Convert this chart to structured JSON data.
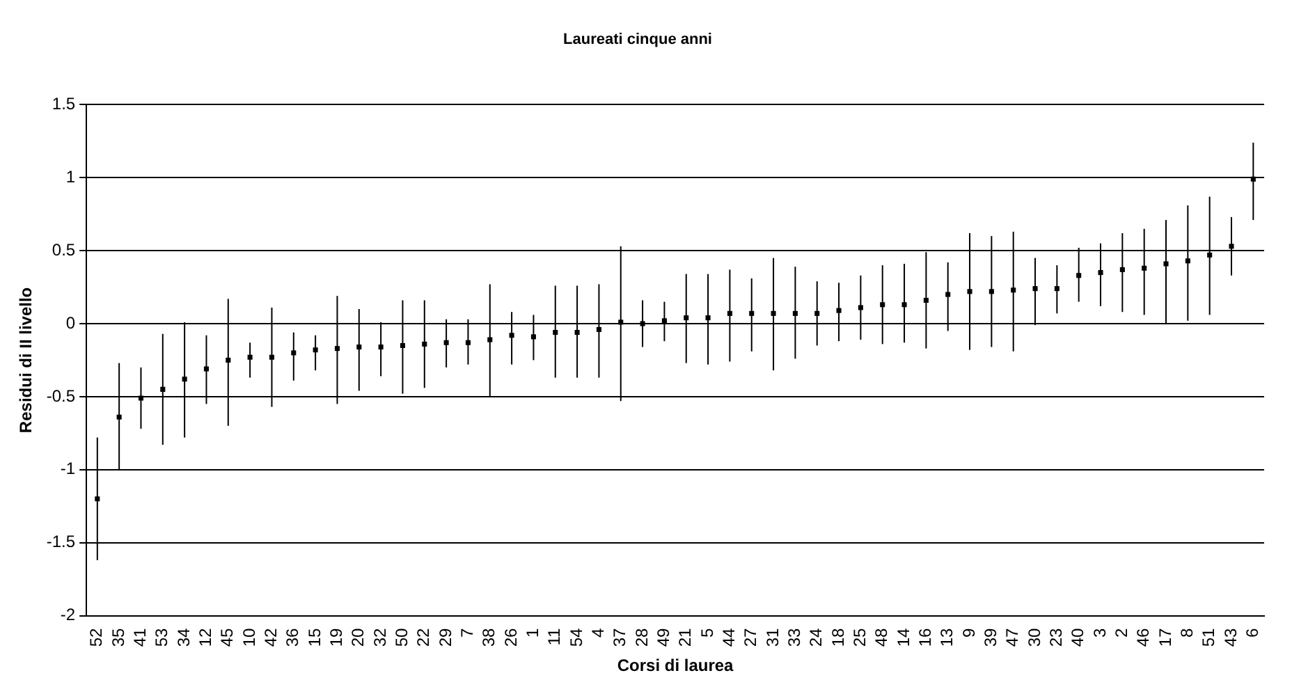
{
  "chart_data": {
    "type": "scatter",
    "title": "Laureati cinque anni",
    "xlabel": "Corsi di laurea",
    "ylabel": "Residui di II livello",
    "categories": [
      "52",
      "35",
      "41",
      "53",
      "34",
      "12",
      "45",
      "10",
      "42",
      "36",
      "15",
      "19",
      "20",
      "32",
      "50",
      "22",
      "29",
      "7",
      "38",
      "26",
      "1",
      "11",
      "54",
      "4",
      "37",
      "28",
      "49",
      "21",
      "5",
      "44",
      "27",
      "31",
      "33",
      "24",
      "18",
      "25",
      "48",
      "14",
      "16",
      "13",
      "9",
      "39",
      "47",
      "30",
      "23",
      "40",
      "3",
      "2",
      "46",
      "17",
      "8",
      "51",
      "43",
      "6"
    ],
    "values": [
      -1.2,
      -0.64,
      -0.51,
      -0.45,
      -0.38,
      -0.31,
      -0.25,
      -0.23,
      -0.23,
      -0.2,
      -0.18,
      -0.17,
      -0.16,
      -0.16,
      -0.15,
      -0.14,
      -0.13,
      -0.13,
      -0.11,
      -0.08,
      -0.09,
      -0.06,
      -0.06,
      -0.04,
      0.01,
      0.0,
      0.02,
      0.04,
      0.04,
      0.07,
      0.07,
      0.07,
      0.07,
      0.07,
      0.09,
      0.11,
      0.13,
      0.13,
      0.16,
      0.2,
      0.22,
      0.22,
      0.23,
      0.24,
      0.24,
      0.33,
      0.35,
      0.37,
      0.38,
      0.41,
      0.43,
      0.47,
      0.53,
      0.99
    ],
    "errors": [
      [
        -1.62,
        -0.78
      ],
      [
        -1.0,
        -0.27
      ],
      [
        -0.72,
        -0.3
      ],
      [
        -0.83,
        -0.07
      ],
      [
        -0.78,
        0.01
      ],
      [
        -0.55,
        -0.08
      ],
      [
        -0.7,
        0.17
      ],
      [
        -0.37,
        -0.13
      ],
      [
        -0.57,
        0.11
      ],
      [
        -0.39,
        -0.06
      ],
      [
        -0.32,
        -0.08
      ],
      [
        -0.55,
        0.19
      ],
      [
        -0.46,
        0.1
      ],
      [
        -0.36,
        0.01
      ],
      [
        -0.48,
        0.16
      ],
      [
        -0.44,
        0.16
      ],
      [
        -0.3,
        0.03
      ],
      [
        -0.28,
        0.03
      ],
      [
        -0.5,
        0.27
      ],
      [
        -0.28,
        0.08
      ],
      [
        -0.25,
        0.06
      ],
      [
        -0.37,
        0.26
      ],
      [
        -0.37,
        0.26
      ],
      [
        -0.37,
        0.27
      ],
      [
        -0.53,
        0.53
      ],
      [
        -0.16,
        0.16
      ],
      [
        -0.12,
        0.15
      ],
      [
        -0.27,
        0.34
      ],
      [
        -0.28,
        0.34
      ],
      [
        -0.26,
        0.37
      ],
      [
        -0.19,
        0.31
      ],
      [
        -0.32,
        0.45
      ],
      [
        -0.24,
        0.39
      ],
      [
        -0.15,
        0.29
      ],
      [
        -0.12,
        0.28
      ],
      [
        -0.11,
        0.33
      ],
      [
        -0.14,
        0.4
      ],
      [
        -0.13,
        0.41
      ],
      [
        -0.17,
        0.49
      ],
      [
        -0.05,
        0.42
      ],
      [
        -0.18,
        0.62
      ],
      [
        -0.16,
        0.6
      ],
      [
        -0.19,
        0.63
      ],
      [
        -0.01,
        0.45
      ],
      [
        0.07,
        0.4
      ],
      [
        0.15,
        0.52
      ],
      [
        0.12,
        0.55
      ],
      [
        0.08,
        0.62
      ],
      [
        0.06,
        0.65
      ],
      [
        0.0,
        0.71
      ],
      [
        0.02,
        0.81
      ],
      [
        0.06,
        0.87
      ],
      [
        0.33,
        0.73
      ],
      [
        0.71,
        1.24
      ]
    ],
    "color": "#000000",
    "marker": "square",
    "ylim": [
      -2,
      1.5
    ],
    "yticks": [
      -2,
      -1.5,
      -1,
      -0.5,
      0,
      0.5,
      1,
      1.5
    ],
    "grid": "y",
    "legend": false
  }
}
